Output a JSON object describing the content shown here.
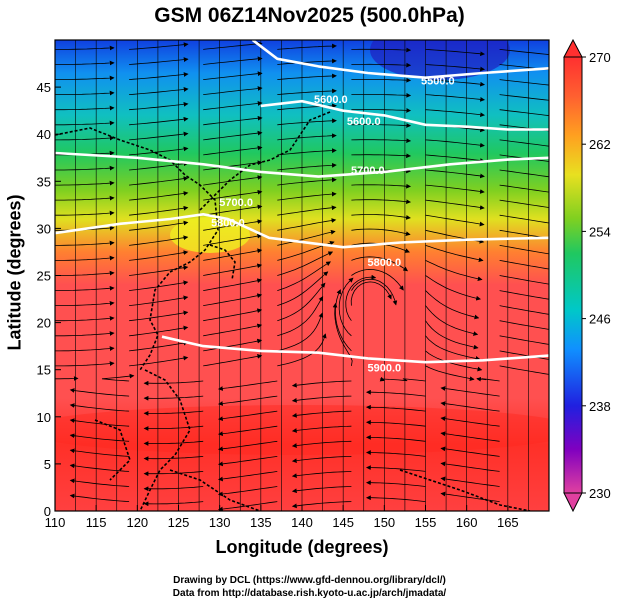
{
  "title": "GSM 06Z14Nov2025 (500.0hPa)",
  "xlabel": "Longitude (degrees)",
  "ylabel": "Latitude  (degrees)",
  "credits": [
    "Drawing by DCL (https://www.gfd-dennou.org/library/dcl/)",
    "Data from http://database.rish.kyoto-u.ac.jp/arch/jmadata/"
  ],
  "chart_data": {
    "type": "heatmap",
    "xlim": [
      110,
      170
    ],
    "ylim": [
      0,
      50
    ],
    "x_ticks": [
      110,
      115,
      120,
      125,
      130,
      135,
      140,
      145,
      150,
      155,
      160,
      165
    ],
    "y_ticks": [
      0,
      5,
      10,
      15,
      20,
      25,
      30,
      35,
      40,
      45
    ],
    "grid": true,
    "colorbar": {
      "min": 230,
      "max": 270,
      "ticks": [
        230,
        238,
        246,
        254,
        262,
        270
      ],
      "colors": [
        "#e040a0",
        "#8000c0",
        "#2020e0",
        "#1090ff",
        "#00c8c8",
        "#20c860",
        "#80d020",
        "#e8e020",
        "#ffa020",
        "#ff6030",
        "#ff3030"
      ]
    },
    "contours": [
      {
        "label": "5500.0",
        "value": 5500,
        "points": [
          [
            134,
            50
          ],
          [
            137,
            48
          ],
          [
            142,
            47.2
          ],
          [
            148,
            46.5
          ],
          [
            155,
            46
          ],
          [
            162,
            46.5
          ],
          [
            170,
            47
          ]
        ]
      },
      {
        "label": "5600.0",
        "value": 5600,
        "points": [
          [
            135,
            43
          ],
          [
            140,
            43.5
          ],
          [
            145,
            42.5
          ],
          [
            150,
            42
          ],
          [
            155,
            41
          ],
          [
            160,
            40.8
          ],
          [
            165,
            40.5
          ],
          [
            170,
            40.5
          ]
        ]
      },
      {
        "label": "5700.0",
        "value": 5700,
        "points": [
          [
            110,
            38
          ],
          [
            120,
            37.5
          ],
          [
            128,
            36.8
          ],
          [
            135,
            36
          ],
          [
            142,
            35.5
          ],
          [
            150,
            36
          ],
          [
            158,
            36.8
          ],
          [
            165,
            37.3
          ],
          [
            170,
            37.5
          ]
        ]
      },
      {
        "label": "5800.0",
        "value": 5800,
        "points": [
          [
            110,
            29.5
          ],
          [
            118,
            30.5
          ],
          [
            124,
            31
          ],
          [
            128,
            31.5
          ],
          [
            131,
            31
          ],
          [
            136,
            29
          ],
          [
            145,
            28
          ],
          [
            152,
            28.5
          ],
          [
            160,
            28.8
          ],
          [
            170,
            29
          ]
        ]
      },
      {
        "label": "5900.0",
        "value": 5900,
        "points": [
          [
            123,
            18.5
          ],
          [
            128,
            17.5
          ],
          [
            135,
            17
          ],
          [
            142,
            16.8
          ],
          [
            148,
            16.2
          ],
          [
            155,
            15.8
          ],
          [
            162,
            16
          ],
          [
            170,
            16.5
          ]
        ]
      }
    ],
    "contour_labels": [
      {
        "text": "5500.0",
        "lon": 156.5,
        "lat": 45.3
      },
      {
        "text": "5600.0",
        "lon": 147.5,
        "lat": 41.0
      },
      {
        "text": "5600.0",
        "lon": 143.5,
        "lat": 43.3
      },
      {
        "text": "5700.0",
        "lon": 148.0,
        "lat": 35.8
      },
      {
        "text": "5700.0",
        "lon": 132.0,
        "lat": 32.4
      },
      {
        "text": "5800.0",
        "lon": 131.0,
        "lat": 30.2
      },
      {
        "text": "5800.0",
        "lon": 150.0,
        "lat": 26.0
      },
      {
        "text": "5900.0",
        "lon": 150.0,
        "lat": 14.8
      }
    ],
    "vortex_center": {
      "lon": 148,
      "lat": 22
    }
  }
}
